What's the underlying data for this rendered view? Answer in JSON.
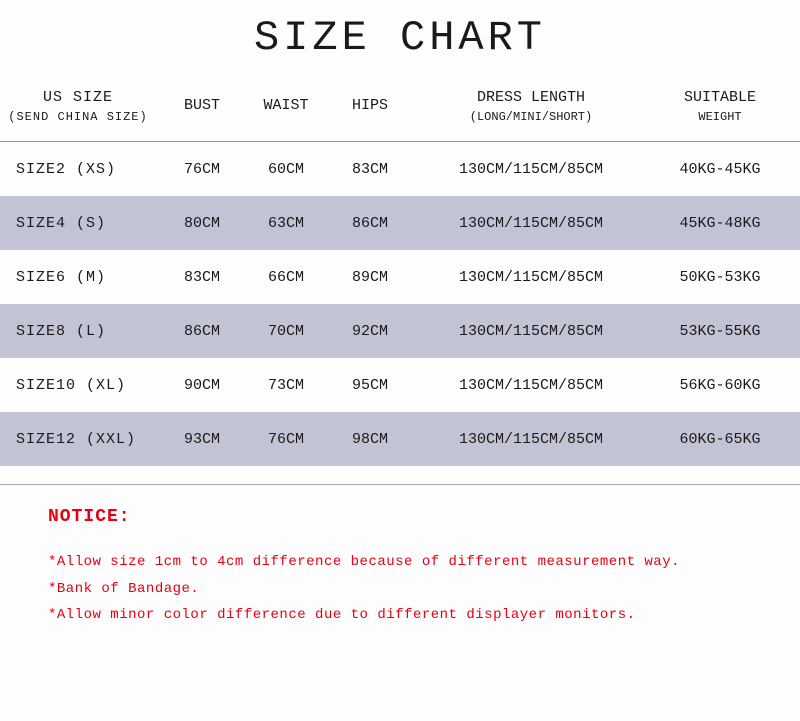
{
  "title": "SIZE CHART",
  "colors": {
    "background": "#fdfdfd",
    "text": "#1a1a1a",
    "alt_row": "#c3c3d6",
    "notice": "#e60012",
    "border": "#999999"
  },
  "columns": {
    "size": {
      "label": "US SIZE",
      "sub": "(SEND CHINA SIZE)"
    },
    "bust": {
      "label": "BUST"
    },
    "waist": {
      "label": "WAIST"
    },
    "hips": {
      "label": "HIPS"
    },
    "length": {
      "label": "DRESS LENGTH",
      "sub": "(LONG/MINI/SHORT)"
    },
    "weight": {
      "label": "SUITABLE",
      "sub": "WEIGHT"
    }
  },
  "rows": [
    {
      "size": "SIZE2 (XS)",
      "bust": "76CM",
      "waist": "60CM",
      "hips": "83CM",
      "length": "130CM/115CM/85CM",
      "weight": "40KG-45KG"
    },
    {
      "size": "SIZE4 (S)",
      "bust": "80CM",
      "waist": "63CM",
      "hips": "86CM",
      "length": "130CM/115CM/85CM",
      "weight": "45KG-48KG"
    },
    {
      "size": "SIZE6 (M)",
      "bust": "83CM",
      "waist": "66CM",
      "hips": "89CM",
      "length": "130CM/115CM/85CM",
      "weight": "50KG-53KG"
    },
    {
      "size": "SIZE8 (L)",
      "bust": "86CM",
      "waist": "70CM",
      "hips": "92CM",
      "length": "130CM/115CM/85CM",
      "weight": "53KG-55KG"
    },
    {
      "size": "SIZE10 (XL)",
      "bust": "90CM",
      "waist": "73CM",
      "hips": "95CM",
      "length": "130CM/115CM/85CM",
      "weight": "56KG-60KG"
    },
    {
      "size": "SIZE12 (XXL)",
      "bust": "93CM",
      "waist": "76CM",
      "hips": "98CM",
      "length": "130CM/115CM/85CM",
      "weight": "60KG-65KG"
    }
  ],
  "notice": {
    "label": "NOTICE:",
    "items": [
      "*Allow size 1cm to 4cm difference because of different measurement way.",
      "*Bank of Bandage.",
      "*Allow minor color difference due to different displayer monitors."
    ]
  }
}
